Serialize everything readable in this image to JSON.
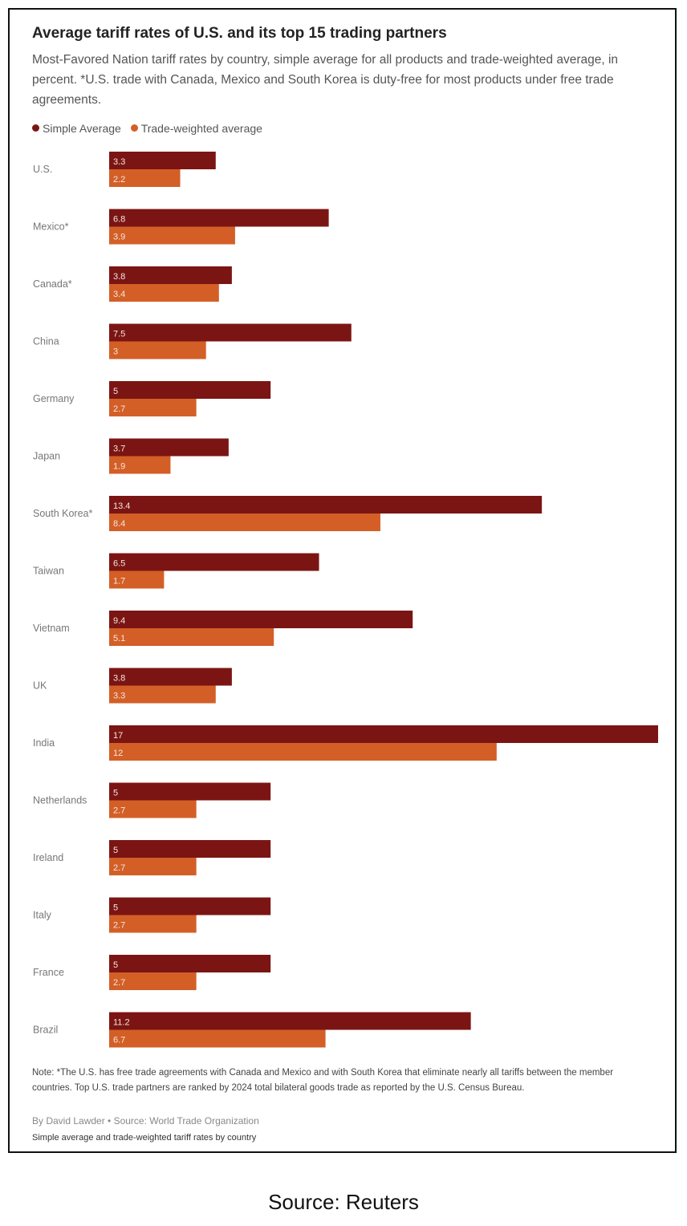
{
  "header": {
    "title": "Average tariff rates of U.S. and its top 15 trading partners",
    "subtitle": "Most-Favored Nation tariff rates by country, simple average for all products and trade-weighted average, in percent. *U.S. trade with Canada, Mexico and South Korea is duty-free for most products under free trade agreements."
  },
  "legend": [
    {
      "label": "Simple Average",
      "color": "#7b1513"
    },
    {
      "label": "Trade-weighted average",
      "color": "#d35f27"
    }
  ],
  "chart_data": {
    "type": "bar",
    "orientation": "horizontal",
    "categories": [
      "U.S.",
      "Mexico*",
      "Canada*",
      "China",
      "Germany",
      "Japan",
      "South Korea*",
      "Taiwan",
      "Vietnam",
      "UK",
      "India",
      "Netherlands",
      "Ireland",
      "Italy",
      "France",
      "Brazil"
    ],
    "series": [
      {
        "name": "Simple Average",
        "color": "#7b1513",
        "values": [
          3.3,
          6.8,
          3.8,
          7.5,
          5,
          3.7,
          13.4,
          6.5,
          9.4,
          3.8,
          17,
          5,
          5,
          5,
          5,
          11.2
        ],
        "labels": [
          "3.3",
          "6.8",
          "3.8",
          "7.5",
          "5",
          "3.7",
          "13.4",
          "6.5",
          "9.4",
          "3.8",
          "17",
          "5",
          "5",
          "5",
          "5",
          "11.2"
        ]
      },
      {
        "name": "Trade-weighted average",
        "color": "#d35f27",
        "values": [
          2.2,
          3.9,
          3.4,
          3,
          2.7,
          1.9,
          8.4,
          1.7,
          5.1,
          3.3,
          12,
          2.7,
          2.7,
          2.7,
          2.7,
          6.7
        ],
        "labels": [
          "2.2",
          "3.9",
          "3.4",
          "3",
          "2.7",
          "1.9",
          "8.4",
          "1.7",
          "5.1",
          "3.3",
          "12",
          "2.7",
          "2.7",
          "2.7",
          "2.7",
          "6.7"
        ]
      }
    ],
    "xlim": [
      0,
      17
    ],
    "grid": false,
    "legend_position": "top-left"
  },
  "footer": {
    "note": "Note: *The U.S. has free trade agreements with Canada and Mexico and with South Korea that eliminate nearly all tariffs between the member countries. Top U.S. trade partners are ranked by 2024 total bilateral goods trade as reported by the U.S. Census Bureau.",
    "byline": "By David Lawder • Source: World Trade Organization",
    "caption": "Simple average and trade-weighted tariff rates by country"
  },
  "source_line": "Source: Reuters"
}
